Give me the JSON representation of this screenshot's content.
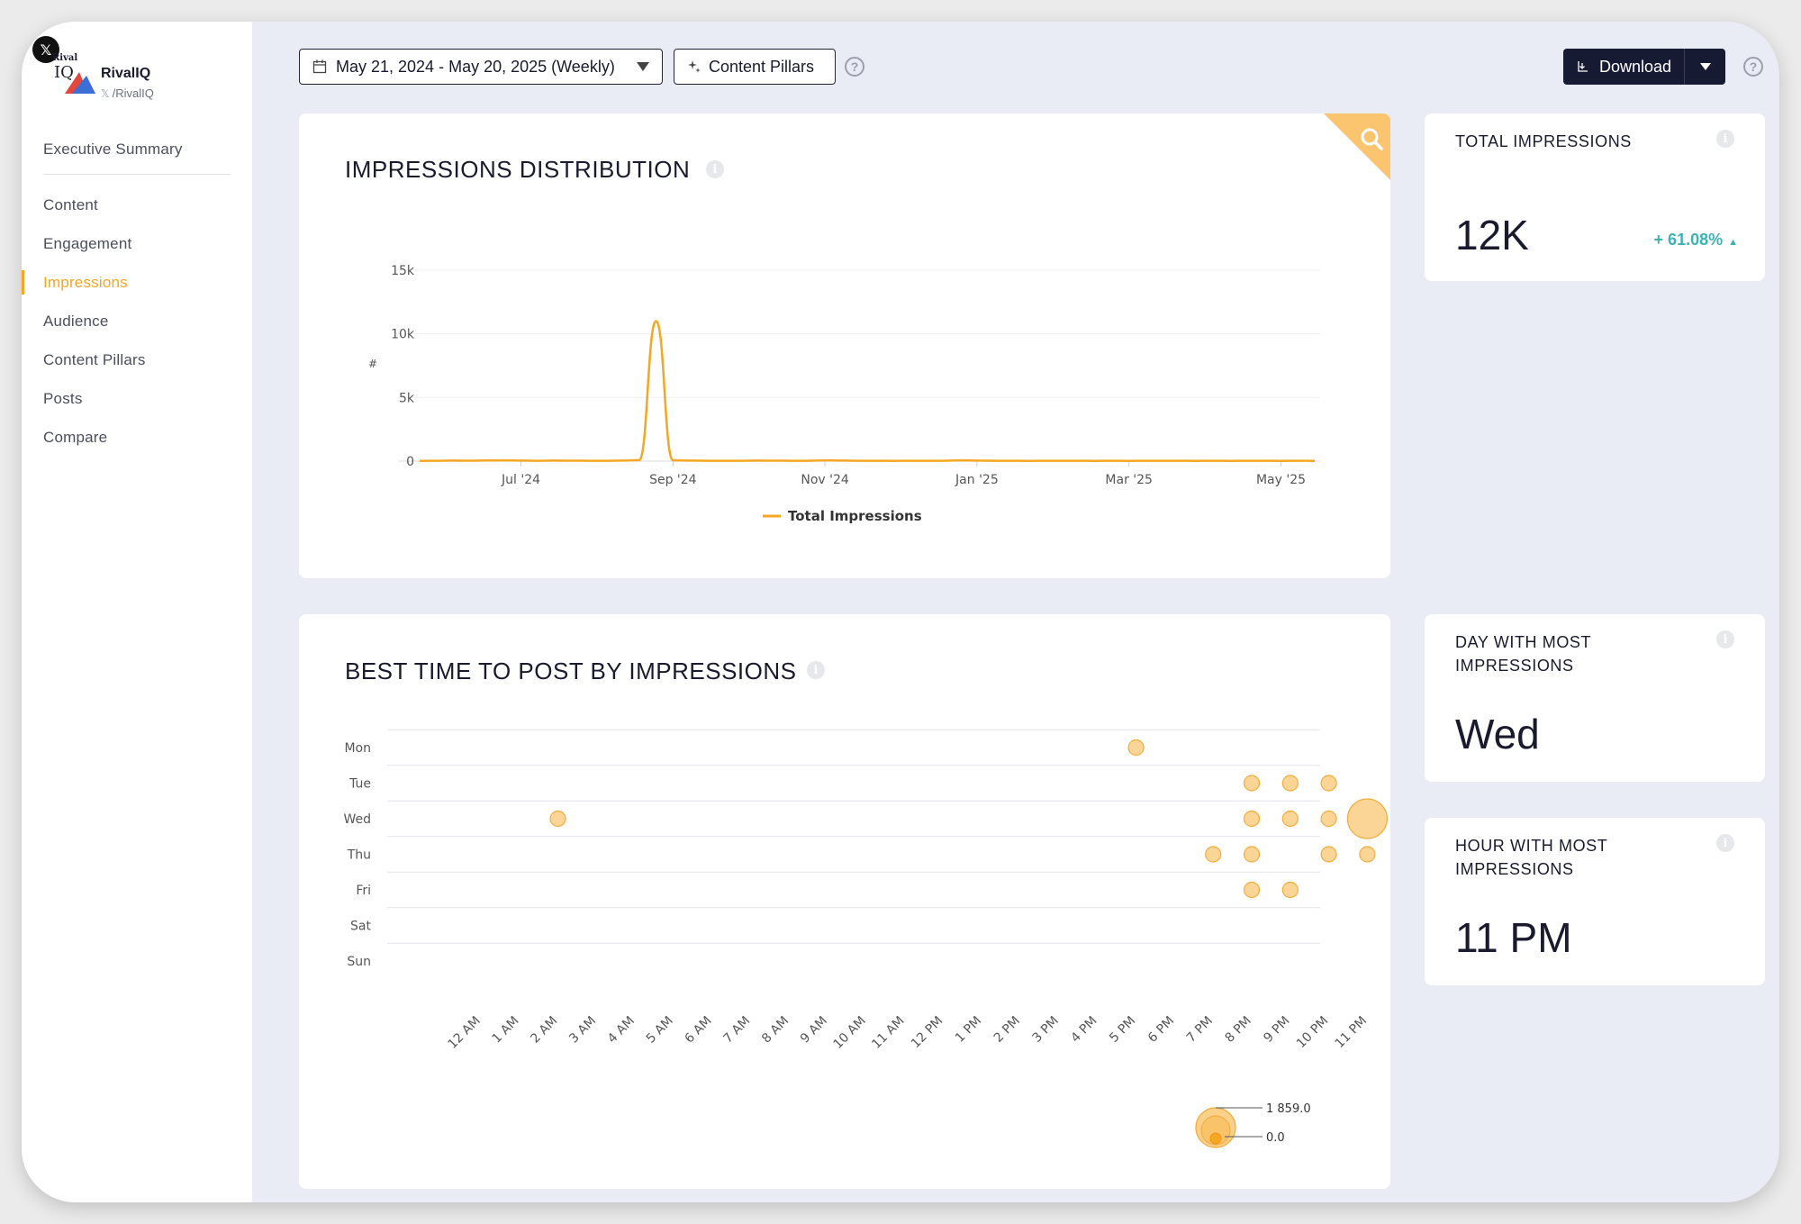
{
  "brand": {
    "platform_icon": "x-logo-icon",
    "logo_text": "Rival",
    "logo_iq": "IQ",
    "name": "RivalIQ",
    "handle": "/RivalIQ"
  },
  "sidebar": {
    "items": [
      {
        "label": "Executive Summary",
        "active": false
      },
      {
        "label": "Content",
        "active": false
      },
      {
        "label": "Engagement",
        "active": false
      },
      {
        "label": "Impressions",
        "active": true
      },
      {
        "label": "Audience",
        "active": false
      },
      {
        "label": "Content Pillars",
        "active": false
      },
      {
        "label": "Posts",
        "active": false
      },
      {
        "label": "Compare",
        "active": false
      }
    ]
  },
  "toolbar": {
    "date_range": "May 21, 2024 - May 20, 2025 (Weekly)",
    "content_pillars": "Content Pillars",
    "download": "Download",
    "help": "?"
  },
  "impressions_distribution": {
    "title": "IMPRESSIONS DISTRIBUTION",
    "chart_data": {
      "type": "line",
      "y_tick_labels": [
        "0",
        "5k",
        "10k",
        "15k"
      ],
      "y_ticks": [
        0,
        5000,
        10000,
        15000
      ],
      "ylim": [
        0,
        15000
      ],
      "ylabel": "#",
      "x_tick_labels": [
        "Jul '24",
        "Sep '24",
        "Nov '24",
        "Jan '25",
        "Mar '25",
        "May '25"
      ],
      "x_tick_weeks": [
        6,
        15,
        24,
        33,
        42,
        51
      ],
      "weeks": [
        0,
        1,
        2,
        3,
        4,
        5,
        6,
        7,
        8,
        9,
        10,
        11,
        12,
        13,
        14,
        15,
        16,
        17,
        18,
        19,
        20,
        21,
        22,
        23,
        24,
        25,
        26,
        27,
        28,
        29,
        30,
        31,
        32,
        33,
        34,
        35,
        36,
        37,
        38,
        39,
        40,
        41,
        42,
        43,
        44,
        45,
        46,
        47,
        48,
        49,
        50,
        51,
        52,
        53
      ],
      "series": [
        {
          "name": "Total Impressions",
          "color": "#f5a623",
          "values": [
            20,
            30,
            40,
            35,
            50,
            60,
            45,
            30,
            40,
            35,
            30,
            25,
            40,
            80,
            11000,
            60,
            40,
            30,
            25,
            30,
            40,
            35,
            30,
            30,
            60,
            40,
            30,
            25,
            20,
            30,
            25,
            30,
            60,
            40,
            30,
            25,
            20,
            30,
            25,
            30,
            20,
            25,
            20,
            25,
            30,
            25,
            20,
            25,
            20,
            30,
            25,
            20,
            25,
            20
          ]
        }
      ]
    }
  },
  "best_time": {
    "title": "BEST TIME TO POST BY IMPRESSIONS",
    "chart_data": {
      "type": "scatter",
      "days": [
        "Mon",
        "Tue",
        "Wed",
        "Thu",
        "Fri",
        "Sat",
        "Sun"
      ],
      "hours": [
        "12 AM",
        "1 AM",
        "2 AM",
        "3 AM",
        "4 AM",
        "5 AM",
        "6 AM",
        "7 AM",
        "8 AM",
        "9 AM",
        "10 AM",
        "11 AM",
        "12 PM",
        "1 PM",
        "2 PM",
        "3 PM",
        "4 PM",
        "5 PM",
        "6 PM",
        "7 PM",
        "8 PM",
        "9 PM",
        "10 PM",
        "11 PM"
      ],
      "points": [
        {
          "day": "Mon",
          "hour": "5 PM",
          "value": 80
        },
        {
          "day": "Tue",
          "hour": "8 PM",
          "value": 80
        },
        {
          "day": "Tue",
          "hour": "9 PM",
          "value": 60
        },
        {
          "day": "Tue",
          "hour": "10 PM",
          "value": 80
        },
        {
          "day": "Wed",
          "hour": "2 AM",
          "value": 90
        },
        {
          "day": "Wed",
          "hour": "8 PM",
          "value": 60
        },
        {
          "day": "Wed",
          "hour": "9 PM",
          "value": 60
        },
        {
          "day": "Wed",
          "hour": "10 PM",
          "value": 80
        },
        {
          "day": "Wed",
          "hour": "11 PM",
          "value": 1859
        },
        {
          "day": "Thu",
          "hour": "7 PM",
          "value": 60
        },
        {
          "day": "Thu",
          "hour": "8 PM",
          "value": 80
        },
        {
          "day": "Thu",
          "hour": "10 PM",
          "value": 60
        },
        {
          "day": "Thu",
          "hour": "11 PM",
          "value": 60
        },
        {
          "day": "Fri",
          "hour": "8 PM",
          "value": 60
        },
        {
          "day": "Fri",
          "hour": "9 PM",
          "value": 60
        }
      ],
      "size_legend": {
        "max_label": "1 859.0",
        "min_label": "0.0",
        "max": 1859,
        "min": 0
      },
      "color": "#f5a623"
    }
  },
  "stats": {
    "total_impressions": {
      "title": "TOTAL IMPRESSIONS",
      "value": "12K",
      "change": "+ 61.08%",
      "trend": "up"
    },
    "day_most": {
      "title": "DAY WITH MOST IMPRESSIONS",
      "value": "Wed"
    },
    "hour_most": {
      "title": "HOUR WITH MOST IMPRESSIONS",
      "value": "11 PM"
    }
  },
  "colors": {
    "accent": "#f5a623",
    "positive": "#3bb3b3",
    "dark": "#161a33"
  }
}
